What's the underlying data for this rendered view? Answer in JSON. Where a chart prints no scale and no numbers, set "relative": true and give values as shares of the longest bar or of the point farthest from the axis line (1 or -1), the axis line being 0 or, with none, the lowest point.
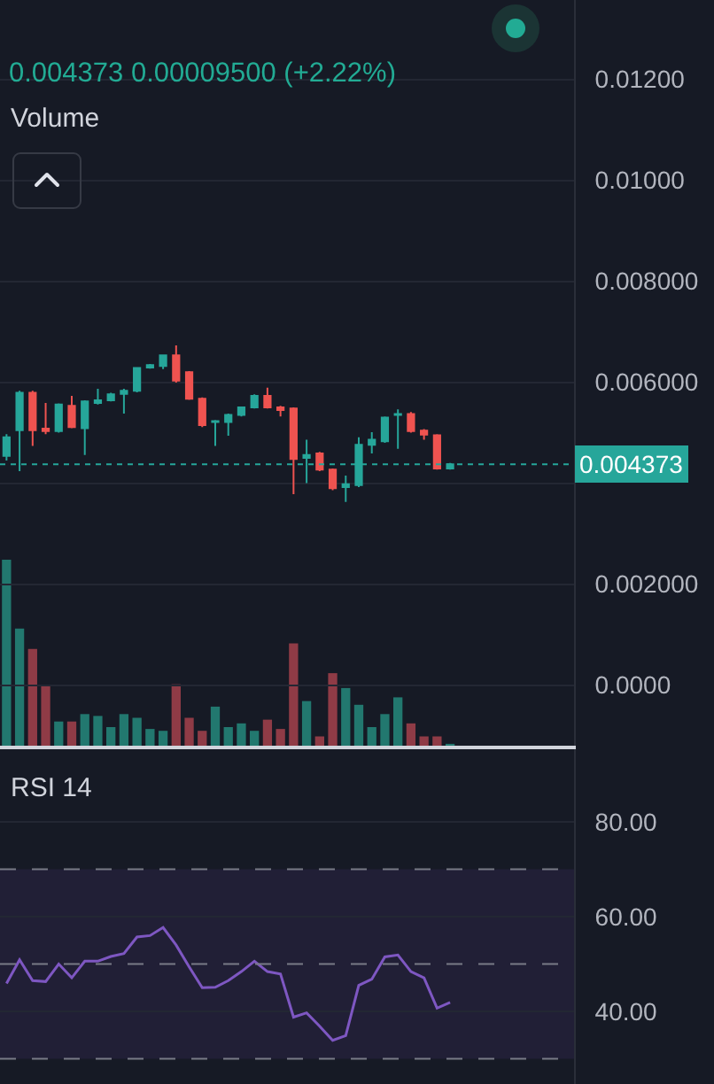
{
  "chart_data": [
    {
      "type": "candlestick",
      "subtitle": "0.004373 0.00009500 (+2.22%)",
      "categories": [
        null,
        null,
        null,
        null,
        null,
        null,
        null,
        null,
        null,
        null,
        null,
        null,
        null,
        null,
        null,
        null,
        null,
        null,
        null,
        null,
        null,
        null,
        null,
        null,
        null,
        null,
        null,
        null,
        null,
        null,
        null,
        null,
        null,
        null,
        null,
        null,
        null,
        null,
        null,
        null,
        null,
        null,
        null,
        null
      ],
      "ohlc": [
        [
          0.00454,
          0.00497,
          0.00445,
          0.00491
        ],
        [
          0.00505,
          0.00583,
          0.00424,
          0.00579
        ],
        [
          0.00579,
          0.00583,
          0.00474,
          0.00505
        ],
        [
          0.00508,
          0.00559,
          0.00497,
          0.00503
        ],
        [
          0.00503,
          0.00558,
          0.005,
          0.00556
        ],
        [
          0.00553,
          0.00573,
          0.00509,
          0.00511
        ],
        [
          0.00509,
          0.00564,
          0.00456,
          0.00562
        ],
        [
          0.00559,
          0.00587,
          0.00556,
          0.00564
        ],
        [
          0.00564,
          0.00579,
          0.00562,
          0.00576
        ],
        [
          0.00577,
          0.00587,
          0.00538,
          0.00583
        ],
        [
          0.00583,
          0.00629,
          0.0058,
          0.00628
        ],
        [
          0.00629,
          0.00636,
          0.00627,
          0.00634
        ],
        [
          0.00632,
          0.00655,
          0.00626,
          0.00653
        ],
        [
          0.00653,
          0.00673,
          0.00599,
          0.00603
        ],
        [
          0.0062,
          0.00622,
          0.00565,
          0.00567
        ],
        [
          0.00567,
          0.0057,
          0.00511,
          0.00515
        ],
        [
          0.00521,
          0.00525,
          0.00474,
          0.00523
        ],
        [
          0.00521,
          0.00538,
          0.00494,
          0.00535
        ],
        [
          0.00535,
          0.00552,
          0.00532,
          0.0055
        ],
        [
          0.0055,
          0.00576,
          0.00548,
          0.00573
        ],
        [
          0.00573,
          0.00589,
          0.00548,
          0.0055
        ],
        [
          0.0055,
          0.00553,
          0.00532,
          0.00545
        ],
        [
          0.00548,
          0.0055,
          0.00378,
          0.00448
        ],
        [
          0.0045,
          0.00486,
          0.004,
          0.00456
        ],
        [
          0.00459,
          0.00462,
          0.00424,
          0.00427
        ],
        [
          0.00427,
          0.00429,
          0.00386,
          0.0039
        ],
        [
          0.00392,
          0.00415,
          0.00363,
          0.00398
        ],
        [
          0.00396,
          0.00491,
          0.00392,
          0.00476
        ],
        [
          0.00476,
          0.00501,
          0.00459,
          0.00486
        ],
        [
          0.00483,
          0.00532,
          0.0048,
          0.0053
        ],
        [
          0.00535,
          0.00546,
          0.00468,
          0.00537
        ],
        [
          0.00537,
          0.00541,
          0.005,
          0.00503
        ],
        [
          0.00504,
          0.00507,
          0.00486,
          0.00496
        ],
        [
          0.00495,
          0.00497,
          0.00427,
          0.00429
        ],
        [
          0.00429,
          0.0044,
          0.00427,
          0.004373
        ],
        null,
        null,
        null,
        null,
        null,
        null,
        null,
        null,
        null
      ],
      "colors": [
        "#26a69a",
        "#26a69a",
        "#ef5350",
        "#ef5350",
        "#26a69a",
        "#ef5350",
        "#26a69a",
        "#26a69a",
        "#26a69a",
        "#26a69a",
        "#26a69a",
        "#26a69a",
        "#26a69a",
        "#ef5350",
        "#ef5350",
        "#ef5350",
        "#26a69a",
        "#26a69a",
        "#26a69a",
        "#26a69a",
        "#ef5350",
        "#ef5350",
        "#ef5350",
        "#26a69a",
        "#ef5350",
        "#ef5350",
        "#26a69a",
        "#26a69a",
        "#26a69a",
        "#26a69a",
        "#26a69a",
        "#ef5350",
        "#ef5350",
        "#ef5350",
        "#26a69a",
        null,
        null,
        null,
        null,
        null,
        null,
        null,
        null,
        null
      ],
      "ylim": [
        -0.00127,
        0.01357
      ],
      "yticks": [
        {
          "value": 0,
          "label": "0.0000"
        },
        {
          "value": 0.002,
          "label": "0.002000"
        },
        {
          "value": 0.004,
          "label": null
        },
        {
          "value": 0.006,
          "label": "0.006000"
        },
        {
          "value": 0.008,
          "label": "0.008000"
        },
        {
          "value": 0.01,
          "label": "0.01000"
        },
        {
          "value": 0.012,
          "label": "0.01200"
        }
      ],
      "ref_lines": [
        {
          "axis": "y",
          "value": 0.004373,
          "label": "0.004373",
          "color": "#26a69a",
          "line_style": "dotted"
        }
      ],
      "grid": "y",
      "tick_labels": "y"
    },
    {
      "type": "bar",
      "title": "Volume",
      "categories": [
        null,
        null,
        null,
        null,
        null,
        null,
        null,
        null,
        null,
        null,
        null,
        null,
        null,
        null,
        null,
        null,
        null,
        null,
        null,
        null,
        null,
        null,
        null,
        null,
        null,
        null,
        null,
        null,
        null,
        null,
        null,
        null,
        null,
        null,
        null,
        null,
        null,
        null,
        null,
        null,
        null,
        null,
        null,
        null
      ],
      "values": [
        1,
        0.63,
        0.52,
        0.32,
        0.13,
        0.13,
        0.17,
        0.16,
        0.1,
        0.17,
        0.15,
        0.09,
        0.08,
        0.33,
        0.15,
        0.08,
        0.21,
        0.1,
        0.12,
        0.08,
        0.14,
        0.09,
        0.55,
        0.24,
        0.05,
        0.39,
        0.31,
        0.22,
        0.1,
        0.17,
        0.26,
        0.12,
        0.05,
        0.05,
        0.01,
        null,
        null,
        null,
        null,
        null,
        null,
        null,
        null,
        null
      ],
      "colors": [
        "#22786f",
        "#22786f",
        "#8f3b46",
        "#8f3b46",
        "#22786f",
        "#8f3b46",
        "#22786f",
        "#22786f",
        "#22786f",
        "#22786f",
        "#22786f",
        "#22786f",
        "#22786f",
        "#8f3b46",
        "#8f3b46",
        "#8f3b46",
        "#22786f",
        "#22786f",
        "#22786f",
        "#22786f",
        "#8f3b46",
        "#8f3b46",
        "#8f3b46",
        "#22786f",
        "#8f3b46",
        "#8f3b46",
        "#22786f",
        "#22786f",
        "#22786f",
        "#22786f",
        "#22786f",
        "#8f3b46",
        "#8f3b46",
        "#8f3b46",
        "#22786f",
        null,
        null,
        null,
        null,
        null,
        null,
        null,
        null,
        null
      ],
      "relative": true,
      "tick_labels": false
    },
    {
      "type": "line",
      "title": "RSI 14",
      "categories": [
        null,
        null,
        null,
        null,
        null,
        null,
        null,
        null,
        null,
        null,
        null,
        null,
        null,
        null,
        null,
        null,
        null,
        null,
        null,
        null,
        null,
        null,
        null,
        null,
        null,
        null,
        null,
        null,
        null,
        null,
        null,
        null,
        null,
        null,
        null,
        null,
        null,
        null,
        null,
        null,
        null,
        null,
        null,
        null
      ],
      "values": [
        45.9,
        50.9,
        46.5,
        46.3,
        50.0,
        47.1,
        50.6,
        50.6,
        51.6,
        52.2,
        55.7,
        56.0,
        57.7,
        54.0,
        49.4,
        45.0,
        45.1,
        46.5,
        48.4,
        50.6,
        48.4,
        47.9,
        38.8,
        39.7,
        36.9,
        33.9,
        34.9,
        45.5,
        46.8,
        51.5,
        51.9,
        48.4,
        47.1,
        40.7,
        41.9,
        null,
        null,
        null,
        null,
        null,
        null,
        null,
        null,
        null
      ],
      "color": "#7e57c2",
      "ylim": [
        24.7,
        95.3
      ],
      "yticks": [
        {
          "value": 40,
          "label": "40.00"
        },
        {
          "value": 60,
          "label": "60.00"
        },
        {
          "value": 80,
          "label": "80.00"
        }
      ],
      "ref_lines": [
        {
          "axis": "y",
          "value": 70,
          "color": "#787b86",
          "line_style": "dashed"
        },
        {
          "axis": "y",
          "value": 50,
          "color": "#787b86",
          "line_style": "dashed"
        },
        {
          "axis": "y",
          "value": 30,
          "color": "#787b86",
          "line_style": "dashed"
        }
      ],
      "bands": [
        {
          "axis": "y",
          "from": 30,
          "to": 70,
          "color": "#211f36"
        }
      ],
      "grid": "y",
      "tick_labels": "y"
    }
  ]
}
